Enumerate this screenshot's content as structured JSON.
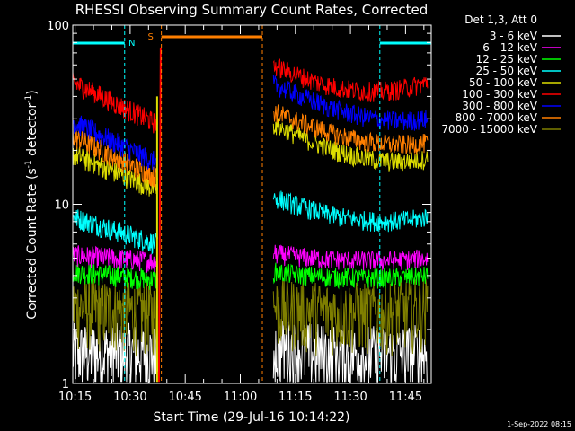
{
  "chart_data": {
    "type": "line",
    "title": "RHESSI Observing Summary Count Rates, Corrected",
    "xlabel": "Start Time (29-Jul-16 10:14:22)",
    "ylabel_parts": [
      "Corrected Count Rate (s",
      "-1",
      " detector",
      "-1",
      ")"
    ],
    "yscale": "log",
    "ylim": [
      1,
      100
    ],
    "y_ticks": [
      {
        "value": 1,
        "label": "1"
      },
      {
        "value": 10,
        "label": "10"
      },
      {
        "value": 100,
        "label": "100"
      }
    ],
    "xlim": [
      "10:14:22",
      "11:52:00"
    ],
    "x_ticks": [
      {
        "value": "10:15",
        "label": "10:15"
      },
      {
        "value": "10:30",
        "label": "10:30"
      },
      {
        "value": "10:45",
        "label": "10:45"
      },
      {
        "value": "11:00",
        "label": "11:00"
      },
      {
        "value": "11:15",
        "label": "11:15"
      },
      {
        "value": "11:30",
        "label": "11:30"
      },
      {
        "value": "11:45",
        "label": "11:45"
      }
    ],
    "legend_title": "Det 1,3, Att 0",
    "legend_position": "right",
    "series": [
      {
        "name": "3 - 6 keV",
        "color": "#ffffff"
      },
      {
        "name": "6 - 12 keV",
        "color": "#ff00ff"
      },
      {
        "name": "12 - 25 keV",
        "color": "#00ff00"
      },
      {
        "name": "25 - 50 keV",
        "color": "#00ffff"
      },
      {
        "name": "50 - 100 keV",
        "color": "#dddd00"
      },
      {
        "name": "100 - 300 keV",
        "color": "#ff0000"
      },
      {
        "name": "300 - 800 keV",
        "color": "#0000ff"
      },
      {
        "name": "800 - 7000 keV",
        "color": "#ff7f00"
      },
      {
        "name": "7000 - 15000 keV",
        "color": "#7f7f00"
      }
    ],
    "levels": {
      "before": [
        {
          "series": 5,
          "start": 48,
          "end": 28
        },
        {
          "series": 6,
          "start": 29,
          "end": 17
        },
        {
          "series": 7,
          "start": 24,
          "end": 14
        },
        {
          "series": 4,
          "start": 19,
          "end": 12
        },
        {
          "series": 3,
          "start": 8.5,
          "end": 6
        },
        {
          "series": 1,
          "start": 5.2,
          "end": 4.8
        },
        {
          "series": 2,
          "start": 4.2,
          "end": 3.8
        },
        {
          "series": 8,
          "start": 2.7,
          "end": 2.5
        },
        {
          "series": 0,
          "start": 1.5,
          "end": 1.5
        }
      ],
      "after": [
        {
          "series": 5,
          "start": 60,
          "min": 36,
          "end": 48
        },
        {
          "series": 6,
          "start": 47,
          "min": 28,
          "end": 30
        },
        {
          "series": 7,
          "start": 33,
          "min": 21,
          "end": 22
        },
        {
          "series": 4,
          "start": 28,
          "min": 16,
          "end": 18
        },
        {
          "series": 3,
          "start": 11,
          "min": 7.5,
          "end": 8.5
        },
        {
          "series": 1,
          "start": 5.3,
          "min": 5.0,
          "end": 5.0
        },
        {
          "series": 2,
          "start": 4.2,
          "min": 4.0,
          "end": 4.0
        },
        {
          "series": 8,
          "start": 2.7,
          "min": 2.6,
          "end": 2.7
        },
        {
          "series": 0,
          "start": 1.6,
          "min": 1.5,
          "end": 1.5
        }
      ]
    },
    "annotations": {
      "night_label": "N",
      "saa_label": "S",
      "night_color": "#00ffff",
      "saa_color": "#ff7f00",
      "night_intervals": [
        [
          "10:14:22",
          "10:28:30"
        ],
        [
          "11:38:00",
          "11:52:00"
        ]
      ],
      "saa_interval": [
        "10:38:30",
        "11:06:00"
      ],
      "data_gap": [
        "10:38:30",
        "11:07:00"
      ]
    },
    "timestamp": "1-Sep-2022 08:15"
  }
}
